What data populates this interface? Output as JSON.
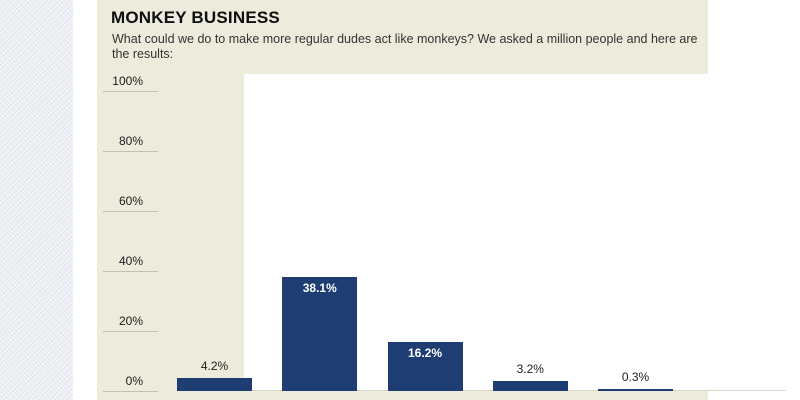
{
  "page": {
    "background_color": "#ffffff",
    "panel_color": "#ecebdc",
    "plot_color": "#ffffff"
  },
  "header": {
    "title": "MONKEY BUSINESS",
    "subtitle": "What could we do to make more regular dudes act like monkeys? We asked a million people and here are the results:"
  },
  "chart_data": {
    "type": "bar",
    "categories": [
      "",
      "",
      "",
      "",
      ""
    ],
    "values": [
      4.2,
      38.1,
      16.2,
      3.2,
      0.3
    ],
    "value_labels": [
      "4.2%",
      "38.1%",
      "16.2%",
      "3.2%",
      "0.3%"
    ],
    "title": "MONKEY BUSINESS",
    "xlabel": "",
    "ylabel": "",
    "ylim": [
      0,
      100
    ],
    "y_ticks": [
      0,
      20,
      40,
      60,
      80,
      100
    ],
    "y_tick_labels": [
      "0%",
      "20%",
      "40%",
      "60%",
      "80%",
      "100%"
    ],
    "grid": false,
    "legend": false,
    "bar_color": "#1e3d73",
    "tick_line_color": "#c2c2b4",
    "axis_label_color": "#1a1a1a",
    "value_label_color_inside": "#ffffff",
    "value_label_color_outside": "#222222"
  }
}
